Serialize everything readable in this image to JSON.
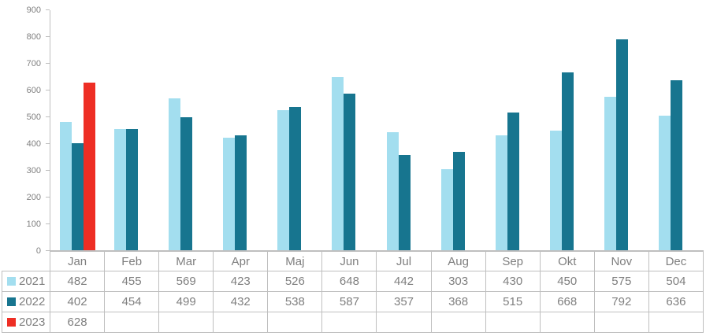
{
  "chart_data": {
    "type": "bar",
    "title": "",
    "xlabel": "",
    "ylabel": "",
    "categories": [
      "Jan",
      "Feb",
      "Mar",
      "Apr",
      "Maj",
      "Jun",
      "Jul",
      "Aug",
      "Sep",
      "Okt",
      "Nov",
      "Dec"
    ],
    "series": [
      {
        "name": "2021",
        "color": "#A3DEEF",
        "values": [
          482,
          455,
          569,
          423,
          526,
          648,
          442,
          303,
          430,
          450,
          575,
          504
        ]
      },
      {
        "name": "2022",
        "color": "#17758F",
        "values": [
          402,
          454,
          499,
          432,
          538,
          587,
          357,
          368,
          515,
          668,
          792,
          636
        ]
      },
      {
        "name": "2023",
        "color": "#EE2E24",
        "values": [
          628,
          null,
          null,
          null,
          null,
          null,
          null,
          null,
          null,
          null,
          null,
          null
        ]
      }
    ],
    "ylim": [
      0,
      900
    ],
    "ytick_interval": 100,
    "yticks": [
      "0",
      "100",
      "200",
      "300",
      "400",
      "500",
      "600",
      "700",
      "800",
      "900"
    ],
    "grid": false,
    "legend_position": "data-table-left",
    "data_table_shown": true
  },
  "style": {
    "axis_line_color": "#BFBFBF",
    "table_border_color": "#BFBFBF",
    "axis_text_color": "#808080",
    "table_text_color": "#7F7F7F",
    "background": "#FFFFFF"
  }
}
